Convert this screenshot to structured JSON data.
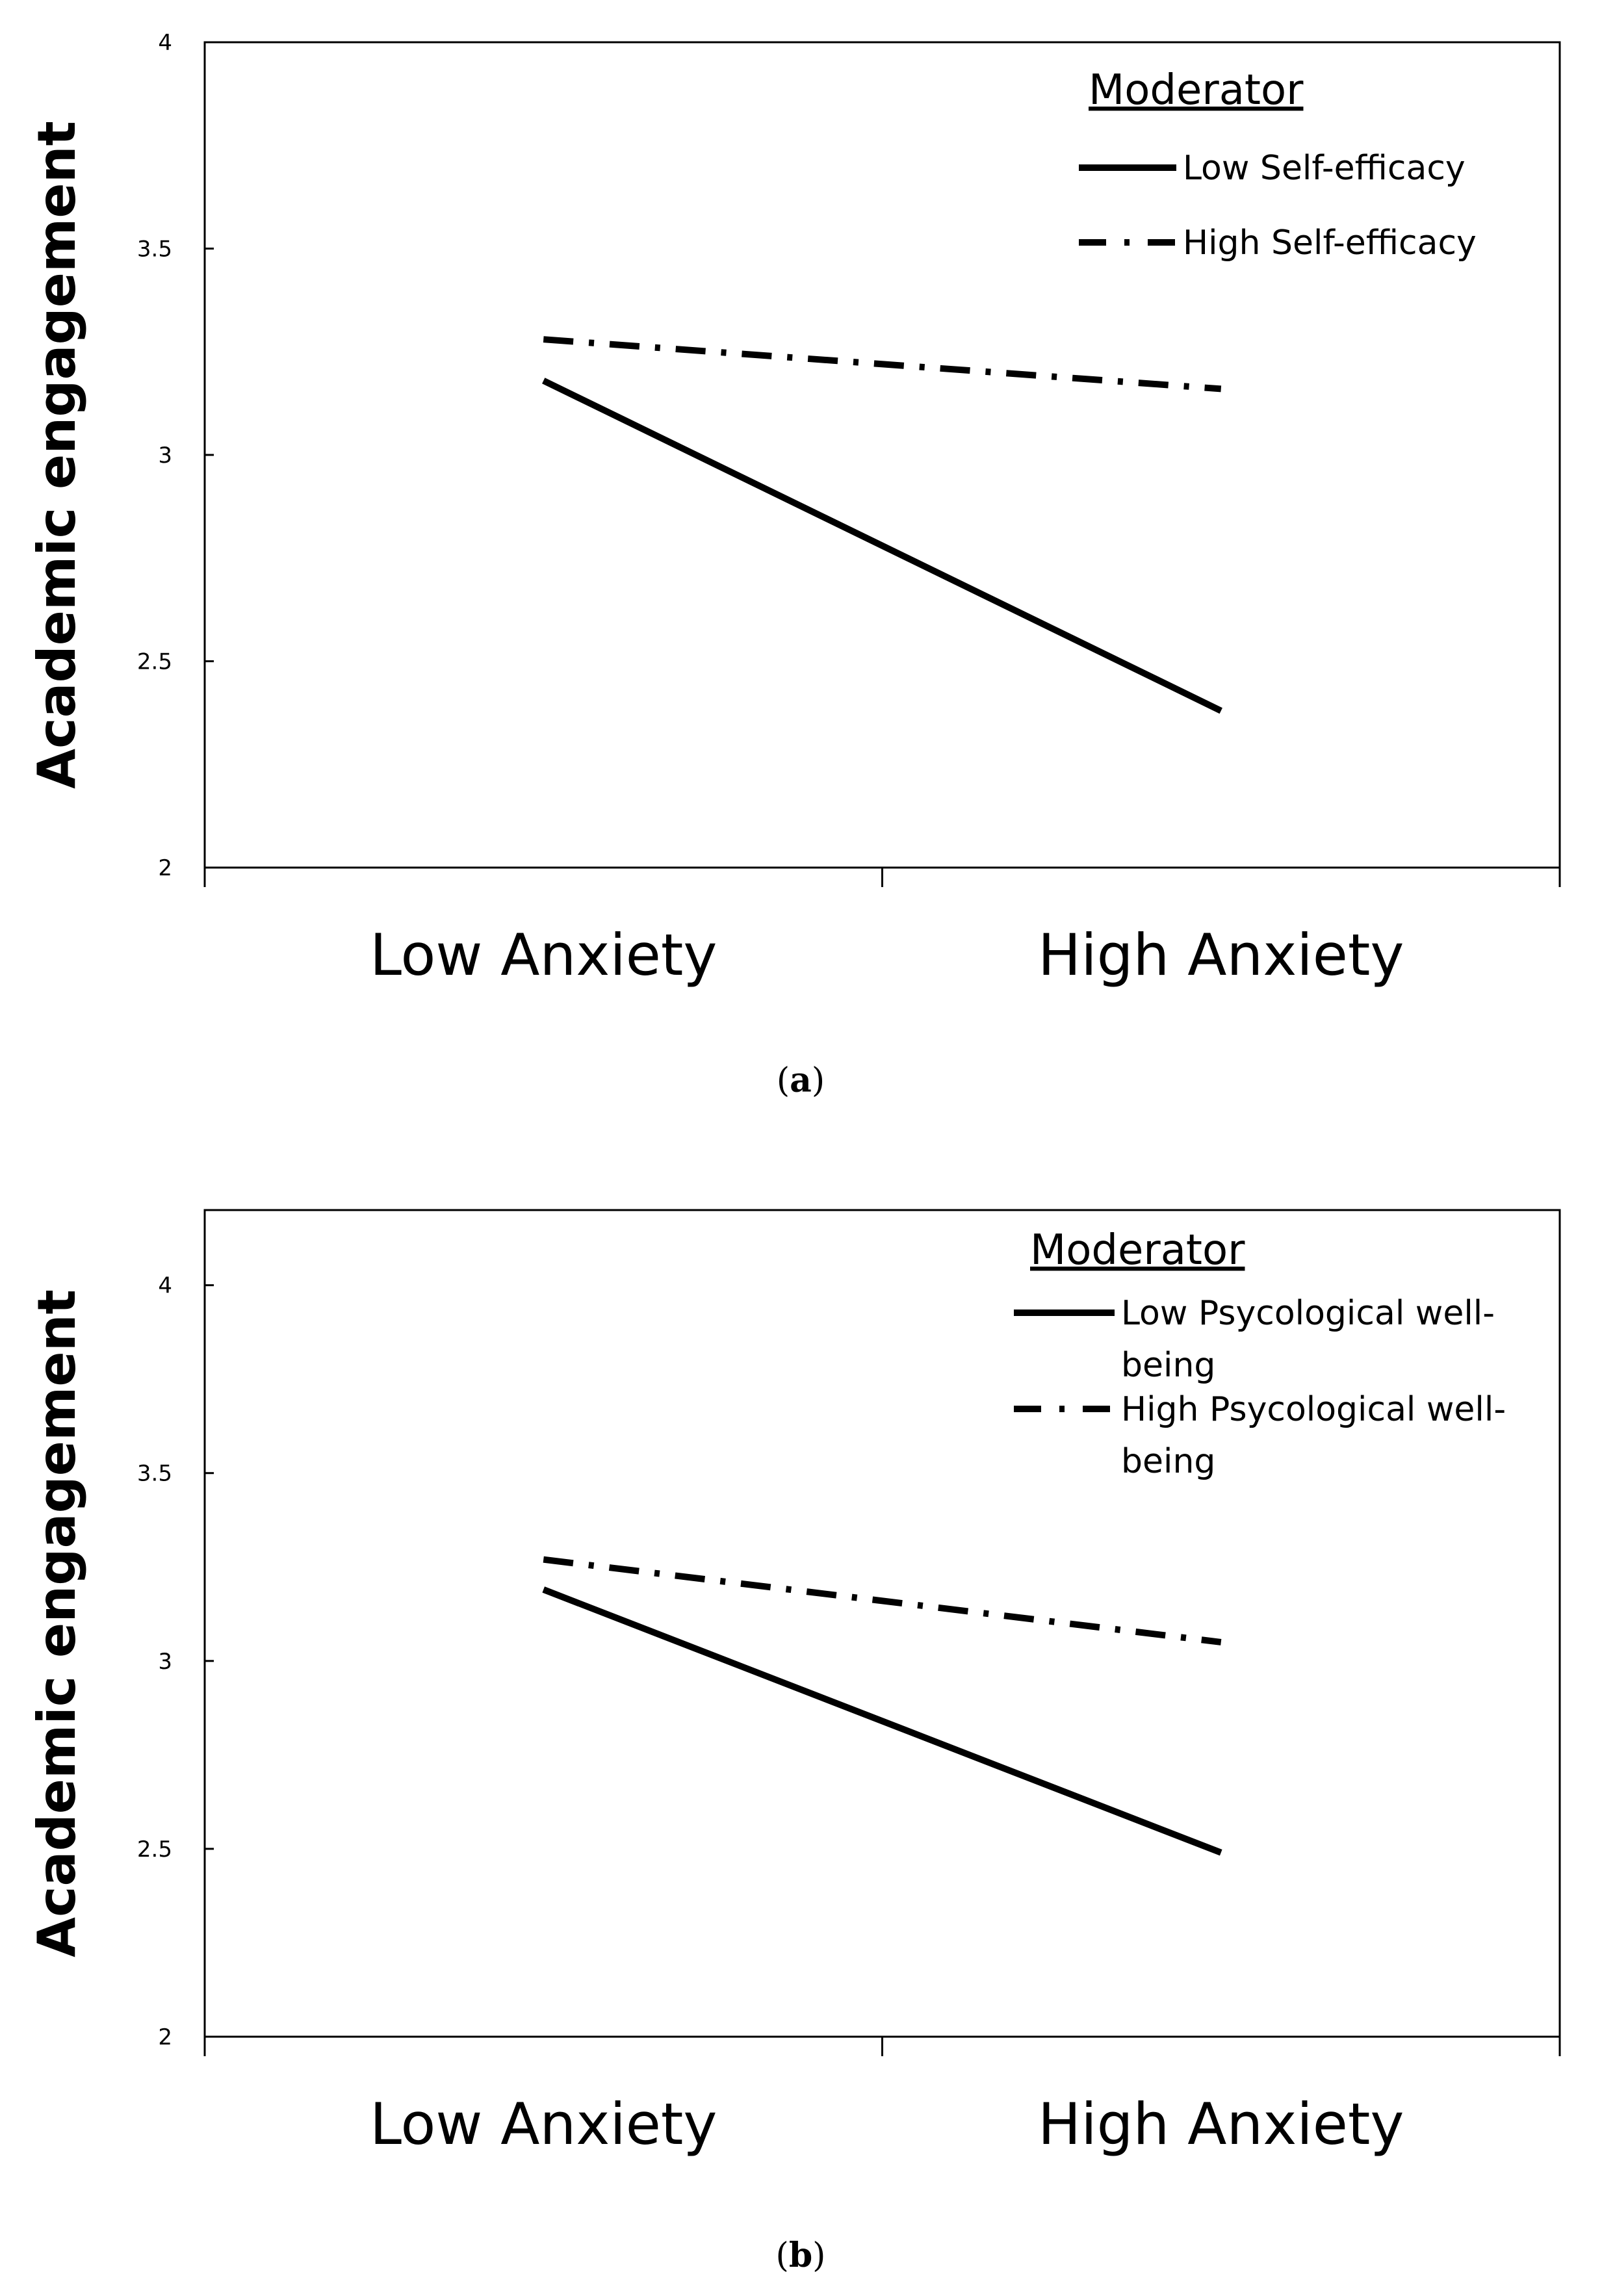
{
  "chart_data": [
    {
      "type": "line",
      "caption": "(a)",
      "caption_letter": "a",
      "ylabel": "Academic engagement",
      "xlabel": "",
      "categories": [
        "Low Anxiety",
        "High Anxiety"
      ],
      "ylim": [
        2,
        4
      ],
      "yticks": [
        "2",
        "2.5",
        "3",
        "3.5",
        "4"
      ],
      "legend_title": "Moderator",
      "legend_position": "top-right",
      "series": [
        {
          "name": "Low Self-efficacy",
          "name_lines": [
            "Low Self-efficacy"
          ],
          "style": "solid",
          "values": [
            3.18,
            2.38
          ]
        },
        {
          "name": "High Self-efficacy",
          "name_lines": [
            "High Self-efficacy"
          ],
          "style": "dashdot",
          "values": [
            3.28,
            3.16
          ]
        }
      ]
    },
    {
      "type": "line",
      "caption": "(b)",
      "caption_letter": "b",
      "ylabel": "Academic engagement",
      "xlabel": "",
      "categories": [
        "Low Anxiety",
        "High Anxiety"
      ],
      "ylim": [
        2,
        4.2
      ],
      "yticks": [
        "2",
        "2.5",
        "3",
        "3.5",
        "4"
      ],
      "legend_title": "Moderator",
      "legend_position": "top-right",
      "series": [
        {
          "name": "Low Psycological well-being",
          "name_lines": [
            "Low Psycological well-",
            "being"
          ],
          "style": "solid",
          "values": [
            3.19,
            2.49
          ]
        },
        {
          "name": "High Psycological well-being",
          "name_lines": [
            "High Psycological well-",
            "being"
          ],
          "style": "dashdot",
          "values": [
            3.27,
            3.05
          ]
        }
      ]
    }
  ]
}
